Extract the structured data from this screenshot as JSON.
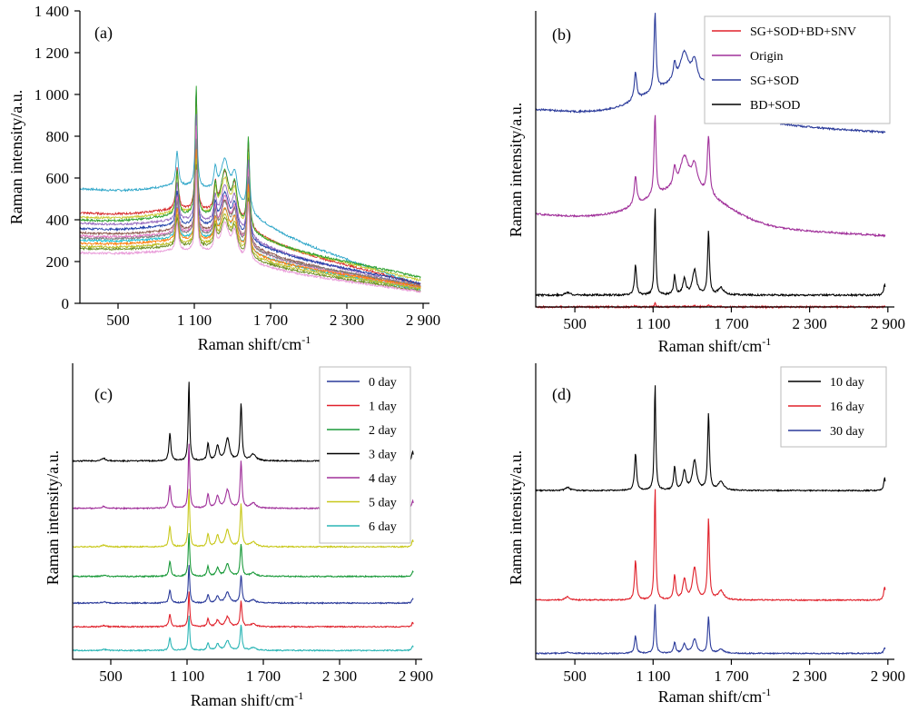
{
  "chart_data": [
    {
      "panel": "(a)",
      "type": "line",
      "xlabel": "Raman shift/cm",
      "xlabel_sup": "-1",
      "ylabel": "Raman intensity/a.u.",
      "xlim": [
        200,
        2950
      ],
      "ylim": [
        0,
        1400
      ],
      "x_ticks": [
        500,
        1100,
        1700,
        2300,
        2900
      ],
      "x_tick_labels": [
        "500",
        "1 100",
        "1 700",
        "2 300",
        "2 900"
      ],
      "y_ticks": [
        0,
        200,
        400,
        600,
        800,
        1000,
        1200,
        1400
      ],
      "y_tick_labels": [
        "0",
        "200",
        "400",
        "600",
        "800",
        "1 000",
        "1 200",
        "1 400"
      ],
      "peaks": [
        {
          "x": 965,
          "amplitude": 0.35,
          "width": 12
        },
        {
          "x": 1115,
          "amplitude": 1.0,
          "width": 9
        },
        {
          "x": 1265,
          "amplitude": 0.22,
          "width": 12
        },
        {
          "x": 1340,
          "amplitude": 0.38,
          "width": 40
        },
        {
          "x": 1418,
          "amplitude": 0.28,
          "width": 25
        },
        {
          "x": 1525,
          "amplitude": 0.72,
          "width": 11
        }
      ],
      "series": [
        {
          "color": "#2ca5c8",
          "baseline_start": 545,
          "baseline_end": 85,
          "peak_height": 770
        },
        {
          "color": "#d62728",
          "baseline_start": 430,
          "baseline_end": 90,
          "peak_height": 820
        },
        {
          "color": "#c8c832",
          "baseline_start": 410,
          "baseline_end": 110,
          "peak_height": 760
        },
        {
          "color": "#2ca02c",
          "baseline_start": 395,
          "baseline_end": 125,
          "peak_height": 870
        },
        {
          "color": "#9467bd",
          "baseline_start": 380,
          "baseline_end": 80,
          "peak_height": 740
        },
        {
          "color": "#1f3fa8",
          "baseline_start": 355,
          "baseline_end": 95,
          "peak_height": 680
        },
        {
          "color": "#8c564b",
          "baseline_start": 335,
          "baseline_end": 75,
          "peak_height": 640
        },
        {
          "color": "#e377c2",
          "baseline_start": 320,
          "baseline_end": 70,
          "peak_height": 720
        },
        {
          "color": "#7f7f7f",
          "baseline_start": 310,
          "baseline_end": 85,
          "peak_height": 660
        },
        {
          "color": "#17becf",
          "baseline_start": 300,
          "baseline_end": 65,
          "peak_height": 600
        },
        {
          "color": "#ff7f0e",
          "baseline_start": 285,
          "baseline_end": 80,
          "peak_height": 620
        },
        {
          "color": "#bcbd22",
          "baseline_start": 270,
          "baseline_end": 70,
          "peak_height": 580
        },
        {
          "color": "#6b8e23",
          "baseline_start": 260,
          "baseline_end": 60,
          "peak_height": 560
        },
        {
          "color": "#e899d8",
          "baseline_start": 240,
          "baseline_end": 55,
          "peak_height": 540
        }
      ]
    },
    {
      "panel": "(b)",
      "type": "line",
      "xlabel": "Raman shift/cm",
      "xlabel_sup": "-1",
      "ylabel": "Raman intensity/a.u.",
      "xlim": [
        200,
        2950
      ],
      "x_ticks": [
        500,
        1100,
        1700,
        2300,
        2900
      ],
      "x_tick_labels": [
        "500",
        "1 100",
        "1 700",
        "2 300",
        "2 900"
      ],
      "legend_position": "top-right",
      "legend": [
        {
          "label": "SG+SOD+BD+SNV",
          "color": "#e0202a"
        },
        {
          "label": "Origin",
          "color": "#a0309a"
        },
        {
          "label": "SG+SOD",
          "color": "#2a3a9a"
        },
        {
          "label": "BD+SOD",
          "color": "#000000"
        }
      ],
      "series": [
        {
          "name": "SG+SOD",
          "color": "#2a3a9a",
          "offset": 0.59,
          "background": 0.22,
          "peak_scale": 0.24
        },
        {
          "name": "Origin",
          "color": "#a0309a",
          "offset": 0.24,
          "background": 0.21,
          "peak_scale": 0.25
        },
        {
          "name": "BD+SOD",
          "color": "#000000",
          "offset": 0.04,
          "background": 0.0,
          "peak_scale": 0.3
        },
        {
          "name": "SG+SOD+BD+SNV",
          "color": "#e0202a",
          "offset": 0.0,
          "background": 0.0,
          "peak_scale": 0.012
        }
      ]
    },
    {
      "panel": "(c)",
      "type": "line",
      "xlabel": "Raman shift/cm",
      "xlabel_sup": "-1",
      "ylabel": "Raman intensity/a.u.",
      "xlim": [
        200,
        2950
      ],
      "x_ticks": [
        500,
        1100,
        1700,
        2300,
        2900
      ],
      "x_tick_labels": [
        "500",
        "1 100",
        "1 700",
        "2 300",
        "2 900"
      ],
      "legend_position": "top-right",
      "legend": [
        {
          "label": "0 day",
          "color": "#2a3a9a"
        },
        {
          "label": "1 day",
          "color": "#e0202a"
        },
        {
          "label": "2 day",
          "color": "#1a9a3a"
        },
        {
          "label": "3 day",
          "color": "#000000"
        },
        {
          "label": "4 day",
          "color": "#a0309a"
        },
        {
          "label": "5 day",
          "color": "#c8c81a"
        },
        {
          "label": "6 day",
          "color": "#2ab5b5"
        }
      ],
      "series": [
        {
          "name": "3 day",
          "color": "#000000",
          "offset": 0.67,
          "peak_scale": 0.27
        },
        {
          "name": "4 day",
          "color": "#a0309a",
          "offset": 0.51,
          "peak_scale": 0.22
        },
        {
          "name": "5 day",
          "color": "#c8c81a",
          "offset": 0.38,
          "peak_scale": 0.2
        },
        {
          "name": "2 day",
          "color": "#1a9a3a",
          "offset": 0.28,
          "peak_scale": 0.15
        },
        {
          "name": "0 day",
          "color": "#2a3a9a",
          "offset": 0.19,
          "peak_scale": 0.13
        },
        {
          "name": "1 day",
          "color": "#e0202a",
          "offset": 0.11,
          "peak_scale": 0.12
        },
        {
          "name": "6 day",
          "color": "#2ab5b5",
          "offset": 0.03,
          "peak_scale": 0.12
        }
      ]
    },
    {
      "panel": "(d)",
      "type": "line",
      "xlabel": "Raman shift/cm",
      "xlabel_sup": "-1",
      "ylabel": "Raman intensity/a.u.",
      "xlim": [
        200,
        2950
      ],
      "x_ticks": [
        500,
        1100,
        1700,
        2300,
        2900
      ],
      "x_tick_labels": [
        "500",
        "1 100",
        "1 700",
        "2 300",
        "2 900"
      ],
      "legend_position": "top-right",
      "legend": [
        {
          "label": "10 day",
          "color": "#000000"
        },
        {
          "label": "16 day",
          "color": "#e0202a"
        },
        {
          "label": "30 day",
          "color": "#2a3a9a"
        }
      ],
      "series": [
        {
          "name": "10 day",
          "color": "#000000",
          "offset": 0.57,
          "peak_scale": 0.36
        },
        {
          "name": "16 day",
          "color": "#e0202a",
          "offset": 0.2,
          "peak_scale": 0.38
        },
        {
          "name": "30 day",
          "color": "#2a3a9a",
          "offset": 0.02,
          "peak_scale": 0.17
        }
      ]
    }
  ]
}
